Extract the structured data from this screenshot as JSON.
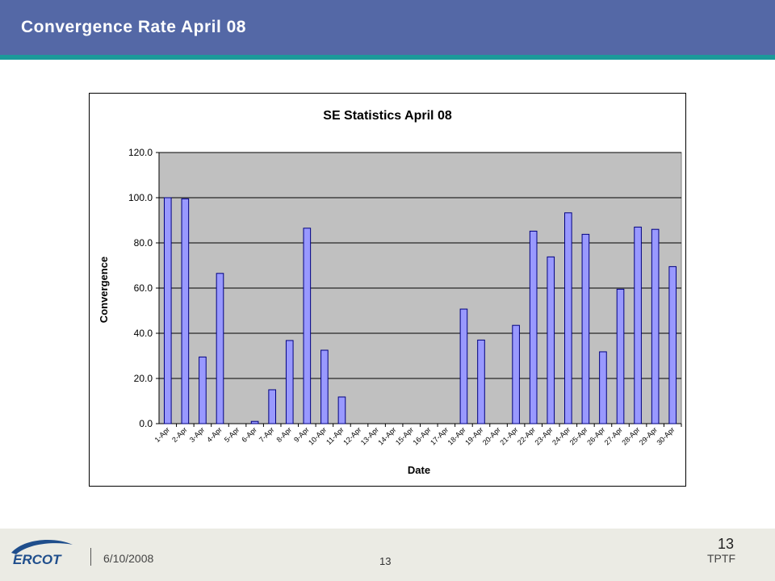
{
  "slide": {
    "title": "Convergence Rate April 08"
  },
  "footer": {
    "date": "6/10/2008",
    "page_center": "13",
    "page_right": "13",
    "org": "TPTF",
    "logo_text": "ERCOT"
  },
  "colors": {
    "header_bg": "#5468a6",
    "header_stripe": "#1b9a9a",
    "plot_bg": "#c0c0c0",
    "bar_fill": "#9999ff",
    "bar_stroke": "#000080",
    "logo_blue": "#1f4e8c"
  },
  "chart_data": {
    "type": "bar",
    "title": "SE Statistics April 08",
    "xlabel": "Date",
    "ylabel": "Convergence",
    "ylim": [
      0,
      120
    ],
    "yticks": [
      "0.0",
      "20.0",
      "40.0",
      "60.0",
      "80.0",
      "100.0",
      "120.0"
    ],
    "grid": true,
    "categories": [
      "1-Apr",
      "2-Apr",
      "3-Apr",
      "4-Apr",
      "5-Apr",
      "6-Apr",
      "7-Apr",
      "8-Apr",
      "9-Apr",
      "10-Apr",
      "11-Apr",
      "12-Apr",
      "13-Apr",
      "14-Apr",
      "15-Apr",
      "16-Apr",
      "17-Apr",
      "18-Apr",
      "19-Apr",
      "20-Apr",
      "21-Apr",
      "22-Apr",
      "23-Apr",
      "24-Apr",
      "25-Apr",
      "26-Apr",
      "27-Apr",
      "28-Apr",
      "29-Apr",
      "30-Apr"
    ],
    "values": [
      100.0,
      99.5,
      29.5,
      66.5,
      0,
      1.0,
      15.0,
      36.8,
      86.5,
      32.5,
      11.8,
      0,
      0,
      0,
      0,
      0,
      0,
      50.7,
      37.0,
      0,
      43.5,
      85.2,
      73.8,
      93.3,
      83.8,
      31.8,
      59.5,
      87.0,
      86.0,
      69.5
    ]
  }
}
